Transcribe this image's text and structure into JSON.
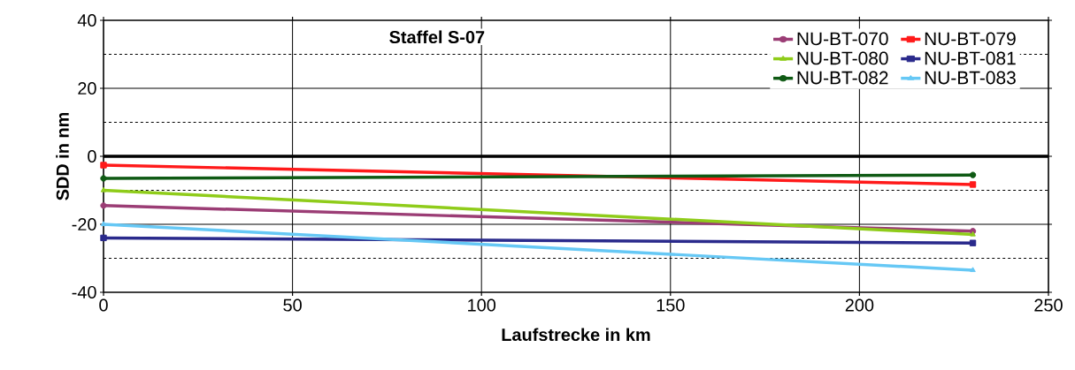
{
  "chart_data": {
    "type": "line",
    "title": "Staffel S-07",
    "xlabel": "Laufstrecke in km",
    "ylabel": "SDD in nm",
    "xlim": [
      0,
      250
    ],
    "xticks": [
      0,
      50,
      100,
      150,
      200,
      250
    ],
    "ylim": [
      -40,
      40
    ],
    "yticks": [
      -40,
      -20,
      0,
      20,
      40
    ],
    "grid": true,
    "legend": "top right",
    "line_style": "solid",
    "ref_lines": [
      {
        "axis": "y",
        "value": 0,
        "color": "#000000"
      }
    ],
    "x": [
      0,
      230
    ],
    "series": [
      {
        "name": "NU-BT-070",
        "color": "#9b3d75",
        "marker": "circle",
        "values": [
          -14.5,
          -22
        ]
      },
      {
        "name": "NU-BT-079",
        "color": "#ff1a1a",
        "marker": "square",
        "values": [
          -2.6,
          -8.3
        ]
      },
      {
        "name": "NU-BT-080",
        "color": "#8fcc1a",
        "marker": "triangle",
        "values": [
          -10,
          -23
        ]
      },
      {
        "name": "NU-BT-081",
        "color": "#2a2a8c",
        "marker": "square",
        "values": [
          -24,
          -25.5
        ]
      },
      {
        "name": "NU-BT-082",
        "color": "#0f5a14",
        "marker": "circle",
        "values": [
          -6.5,
          -5.5
        ]
      },
      {
        "name": "NU-BT-083",
        "color": "#66c8f5",
        "marker": "triangle",
        "values": [
          -20,
          -33.5
        ]
      }
    ]
  }
}
